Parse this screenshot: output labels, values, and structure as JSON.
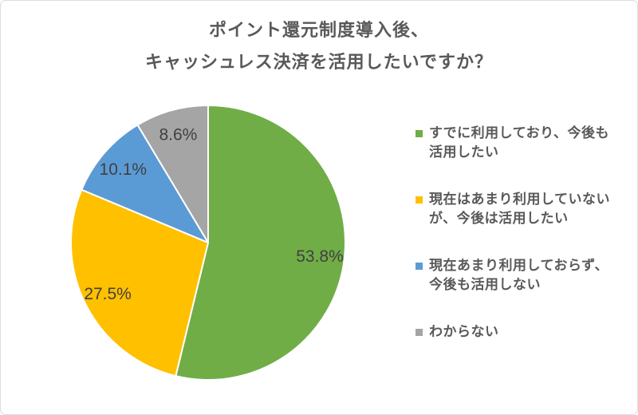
{
  "card": {
    "title_lines": "ポイント還元制度導入後、\nキャッシュレス決済を活用したいですか？"
  },
  "chart_data": {
    "type": "pie",
    "title": "ポイント還元制度導入後、キャッシュレス決済を活用したいですか？",
    "start_angle_deg": 0,
    "direction": "clockwise",
    "legend_position": "right",
    "data_label_format": "percent_one_decimal",
    "background_color": "#ffffff",
    "title_color": "#595959",
    "data_label_color": "#404040",
    "slices": [
      {
        "label": "すでに利用しており、今後も活用したい",
        "legend_text": "すでに利用しており、今後も\n活用したい",
        "value_pct": 53.8,
        "data_label": "53.8%",
        "color": "#70AD47"
      },
      {
        "label": "現在はあまり利用していないが、今後は活用したい",
        "legend_text": "現在はあまり利用していない\nが、今後は活用したい",
        "value_pct": 27.5,
        "data_label": "27.5%",
        "color": "#FFC000"
      },
      {
        "label": "現在あまり利用しておらず、今後も活用しない",
        "legend_text": "現在あまり利用しておらず、\n今後も活用しない",
        "value_pct": 10.1,
        "data_label": "10.1%",
        "color": "#5B9BD5"
      },
      {
        "label": "わからない",
        "legend_text": "わからない",
        "value_pct": 8.6,
        "data_label": "8.6%",
        "color": "#A5A5A5"
      }
    ]
  }
}
